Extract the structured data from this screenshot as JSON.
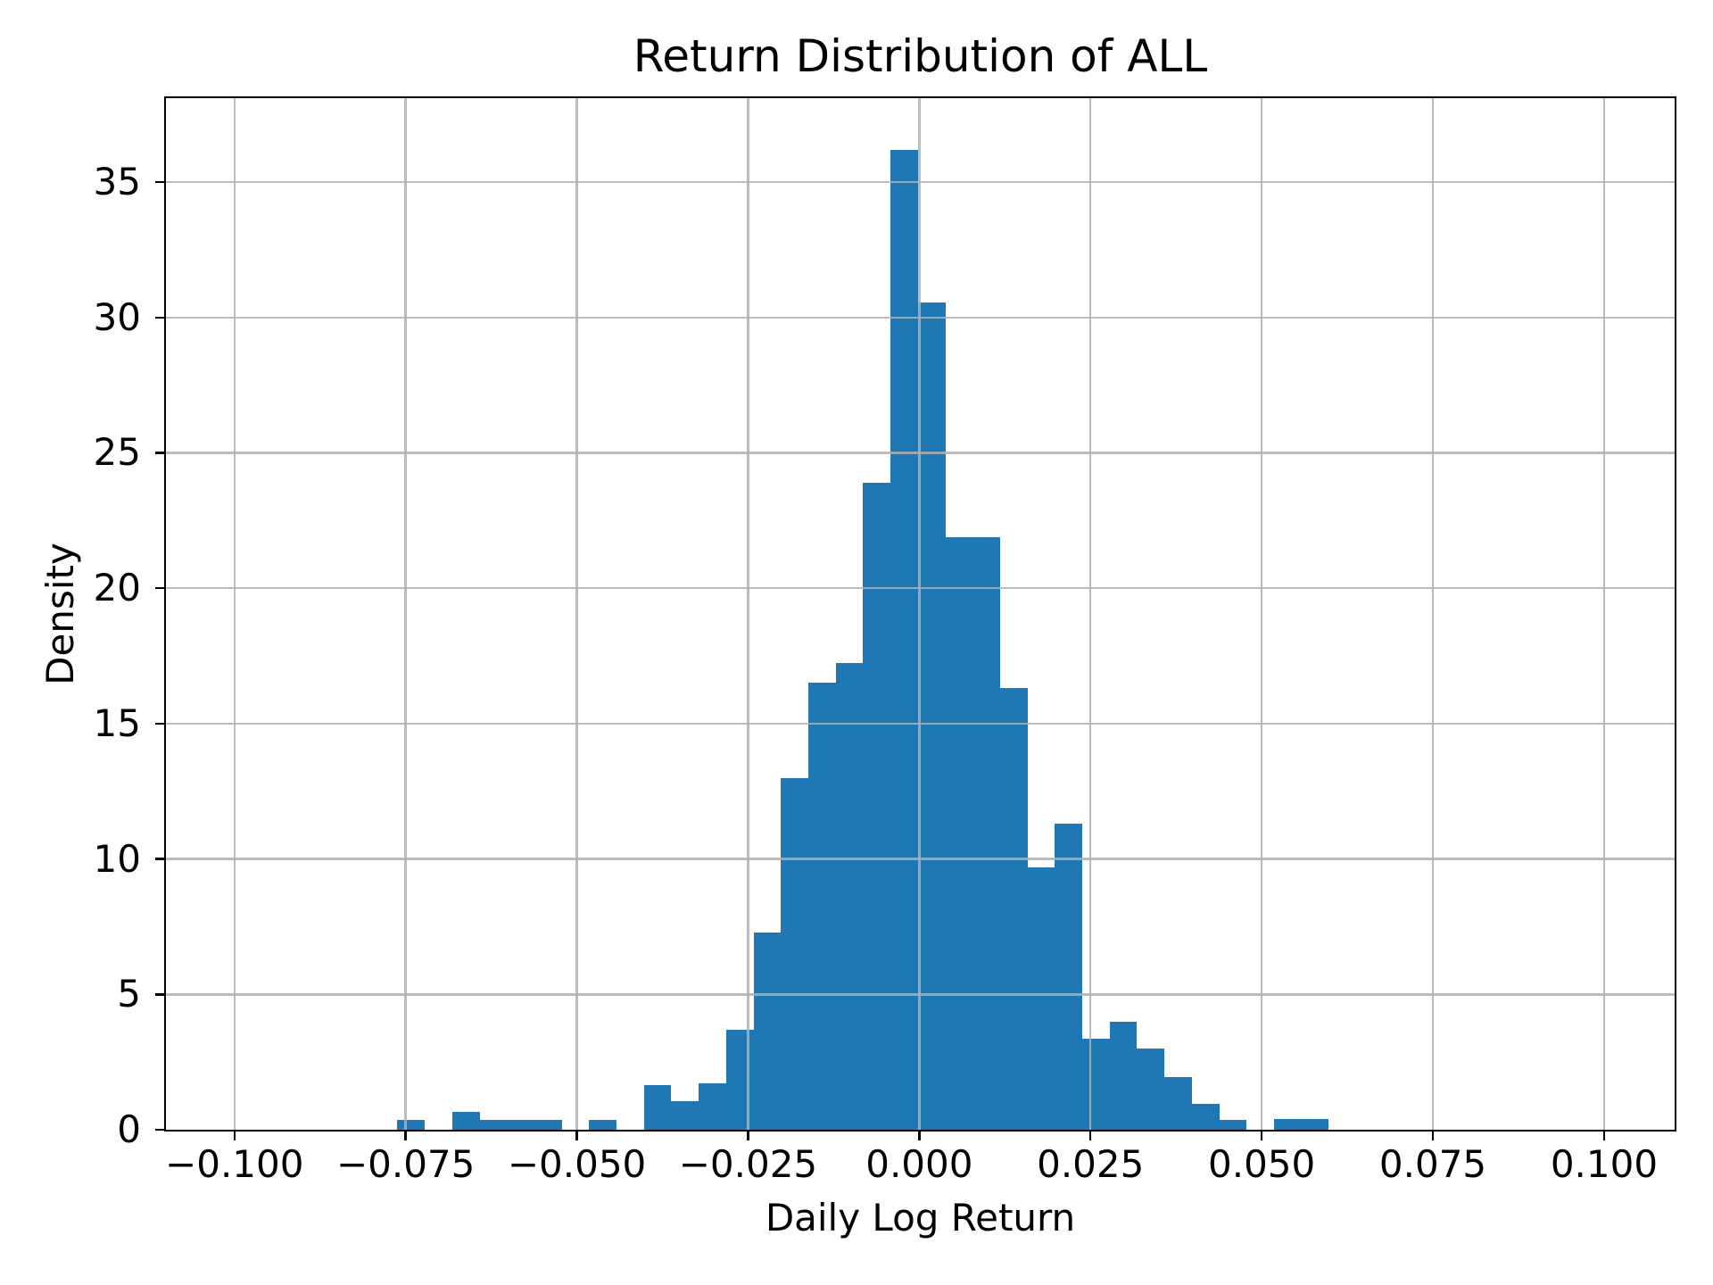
{
  "figure": {
    "background": "#ffffff"
  },
  "chart_data": {
    "type": "bar",
    "subtype": "histogram",
    "title": "Return Distribution of ALL",
    "xlabel": "Daily Log Return",
    "ylabel": "Density",
    "xlim": [
      -0.11,
      0.1103
    ],
    "ylim": [
      0,
      38.1
    ],
    "grid": true,
    "grid_color": "#b0b0b0",
    "bar_color": "#1f77b4",
    "legend": "none",
    "bin_edges": [
      -0.0762,
      -0.0722,
      -0.0682,
      -0.0642,
      -0.0602,
      -0.0562,
      -0.0522,
      -0.0482,
      -0.0442,
      -0.0402,
      -0.0362,
      -0.0322,
      -0.0282,
      -0.0242,
      -0.0202,
      -0.0162,
      -0.0122,
      -0.0082,
      -0.0042,
      -0.0002,
      0.0038,
      0.0078,
      0.0118,
      0.0158,
      0.0198,
      0.0238,
      0.0278,
      0.0318,
      0.0358,
      0.0398,
      0.0438,
      0.0478,
      0.0518,
      0.0558,
      0.0598
    ],
    "densities": [
      0.35,
      0,
      0.65,
      0.35,
      0.35,
      0.35,
      0,
      0.35,
      0,
      1.65,
      1.05,
      1.7,
      3.7,
      7.3,
      13.0,
      16.5,
      17.25,
      23.9,
      36.2,
      30.55,
      21.9,
      21.9,
      16.3,
      9.7,
      11.3,
      3.35,
      4.0,
      3.0,
      1.95,
      0.95,
      0.35,
      0,
      0.4,
      0.4
    ]
  },
  "x_axis": {
    "label": "Daily Log Return",
    "tick_labels": [
      "−0.100",
      "−0.075",
      "−0.050",
      "−0.025",
      "0.000",
      "0.025",
      "0.050",
      "0.075",
      "0.100"
    ],
    "tick_values": [
      -0.1,
      -0.075,
      -0.05,
      -0.025,
      0.0,
      0.025,
      0.05,
      0.075,
      0.1
    ]
  },
  "y_axis": {
    "label": "Density",
    "tick_labels": [
      "0",
      "5",
      "10",
      "15",
      "20",
      "25",
      "30",
      "35"
    ],
    "tick_values": [
      0,
      5,
      10,
      15,
      20,
      25,
      30,
      35
    ]
  }
}
